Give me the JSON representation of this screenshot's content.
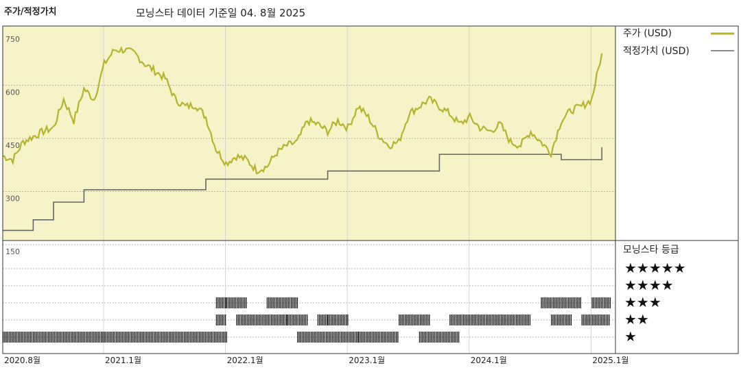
{
  "header": {
    "title": "주가/적정가치",
    "subtitle": "모닝스타 데이터 기준일 04. 8월 2025"
  },
  "legend": {
    "price_label": "주가 (USD)",
    "fair_value_label": "적정가치 (USD)",
    "rating_title": "모닝스타 등급",
    "rating_stars": [
      "★★★★★",
      "★★★★",
      "★★★",
      "★★",
      "★"
    ]
  },
  "colors": {
    "price_line": "#b3b32d",
    "fair_value_line": "#666666",
    "price_panel_bg": "#f7f3c8",
    "rating_bars": "#111111"
  },
  "chart_data": {
    "type": "line",
    "y_ticks": [
      750,
      600,
      450,
      300,
      150
    ],
    "ylim": [
      150,
      750
    ],
    "x_ticks": [
      "2020.8월",
      "2021.1월",
      "2022.1월",
      "2023.1월",
      "2024.1월",
      "2025.1월"
    ],
    "series": [
      {
        "name": "주가 (USD)",
        "points": [
          [
            "2020-08",
            400
          ],
          [
            "2020-09",
            390
          ],
          [
            "2020-10",
            440
          ],
          [
            "2020-11",
            455
          ],
          [
            "2020-12",
            470
          ],
          [
            "2021-01",
            480
          ],
          [
            "2021-02",
            560
          ],
          [
            "2021-03",
            500
          ],
          [
            "2021-04",
            590
          ],
          [
            "2021-05",
            560
          ],
          [
            "2021-06",
            660
          ],
          [
            "2021-07",
            700
          ],
          [
            "2021-08",
            700
          ],
          [
            "2021-09",
            690
          ],
          [
            "2021-10",
            660
          ],
          [
            "2021-11",
            640
          ],
          [
            "2021-12",
            620
          ],
          [
            "2022-01",
            560
          ],
          [
            "2022-02",
            540
          ],
          [
            "2022-03",
            545
          ],
          [
            "2022-04",
            510
          ],
          [
            "2022-05",
            420
          ],
          [
            "2022-06",
            380
          ],
          [
            "2022-07",
            400
          ],
          [
            "2022-08",
            390
          ],
          [
            "2022-09",
            360
          ],
          [
            "2022-10",
            370
          ],
          [
            "2022-11",
            410
          ],
          [
            "2022-12",
            430
          ],
          [
            "2023-01",
            440
          ],
          [
            "2023-02",
            500
          ],
          [
            "2023-03",
            490
          ],
          [
            "2023-04",
            470
          ],
          [
            "2023-05",
            500
          ],
          [
            "2023-06",
            480
          ],
          [
            "2023-07",
            540
          ],
          [
            "2023-08",
            510
          ],
          [
            "2023-09",
            460
          ],
          [
            "2023-10",
            430
          ],
          [
            "2023-11",
            440
          ],
          [
            "2023-12",
            520
          ],
          [
            "2024-01",
            540
          ],
          [
            "2024-02",
            560
          ],
          [
            "2024-03",
            540
          ],
          [
            "2024-04",
            520
          ],
          [
            "2024-05",
            490
          ],
          [
            "2024-06",
            510
          ],
          [
            "2024-07",
            480
          ],
          [
            "2024-08",
            470
          ],
          [
            "2024-09",
            490
          ],
          [
            "2024-10",
            440
          ],
          [
            "2024-11",
            430
          ],
          [
            "2024-12",
            470
          ],
          [
            "2025-01",
            440
          ],
          [
            "2025-02",
            410
          ],
          [
            "2025-03",
            500
          ],
          [
            "2025-04",
            530
          ],
          [
            "2025-05",
            540
          ],
          [
            "2025-06",
            560
          ],
          [
            "2025-07",
            690
          ]
        ]
      },
      {
        "name": "적정가치 (USD)",
        "points": [
          [
            "2020-08",
            190
          ],
          [
            "2020-11",
            220
          ],
          [
            "2021-01",
            270
          ],
          [
            "2021-04",
            305
          ],
          [
            "2022-04",
            335
          ],
          [
            "2023-04",
            358
          ],
          [
            "2024-03",
            405
          ],
          [
            "2025-03",
            390
          ],
          [
            "2025-07",
            425
          ]
        ]
      }
    ],
    "rating_history": [
      {
        "stars": 3,
        "periods": [
          [
            "2022-05",
            "2022-05"
          ],
          [
            "2022-06",
            "2022-07"
          ],
          [
            "2022-10",
            "2022-12"
          ],
          [
            "2025-01",
            "2025-04"
          ],
          [
            "2025-06",
            "2025-07"
          ]
        ]
      },
      {
        "stars": 2,
        "periods": [
          [
            "2022-05",
            "2022-05"
          ],
          [
            "2022-07",
            "2022-11"
          ],
          [
            "2022-12",
            "2023-01"
          ],
          [
            "2023-03",
            "2023-03"
          ],
          [
            "2023-04",
            "2023-05"
          ],
          [
            "2023-11",
            "2024-01"
          ],
          [
            "2024-04",
            "2024-11"
          ],
          [
            "2025-02",
            "2025-03"
          ],
          [
            "2025-05",
            "2025-07"
          ]
        ]
      },
      {
        "stars": 1,
        "periods": [
          [
            "2020-08",
            "2022-05"
          ],
          [
            "2023-01",
            "2023-06"
          ],
          [
            "2023-07",
            "2023-10"
          ],
          [
            "2024-01",
            "2024-04"
          ],
          [
            "2025-08",
            "2025-08"
          ]
        ]
      }
    ]
  }
}
